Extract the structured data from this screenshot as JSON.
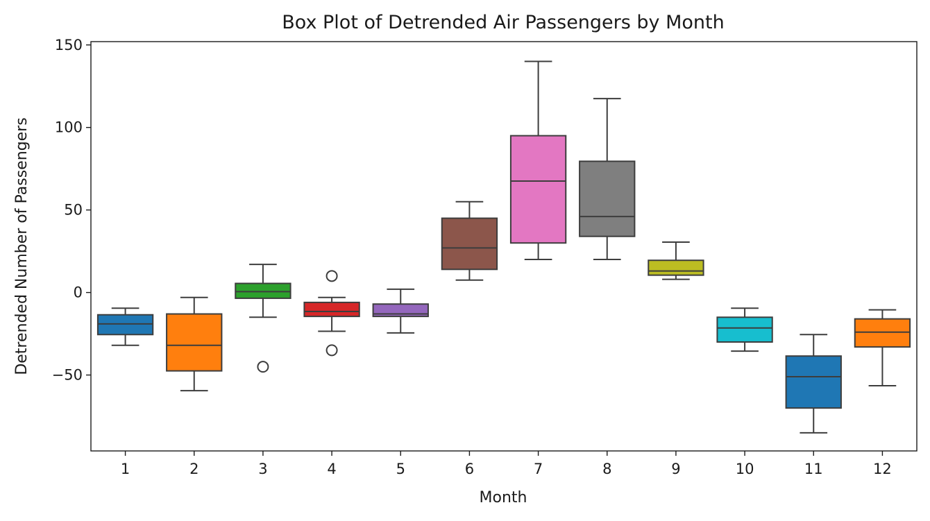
{
  "chart_data": {
    "type": "box",
    "title": "Box Plot of Detrended Air Passengers by Month",
    "xlabel": "Month",
    "ylabel": "Detrended Number of Passengers",
    "ylim": [
      -96,
      152
    ],
    "yticks": [
      -50,
      0,
      50,
      100,
      150
    ],
    "yticklabels": [
      "−50",
      "0",
      "50",
      "100",
      "150"
    ],
    "grid": false,
    "categories": [
      "1",
      "2",
      "3",
      "4",
      "5",
      "6",
      "7",
      "8",
      "9",
      "10",
      "11",
      "12"
    ],
    "colors": [
      "#1f77b4",
      "#ff7f0e",
      "#2ca02c",
      "#d62728",
      "#9467bd",
      "#8c564b",
      "#e377c2",
      "#7f7f7f",
      "#bcbd22",
      "#17becf",
      "#1f77b4",
      "#ff7f0e"
    ],
    "boxes": [
      {
        "whisker_low": -32,
        "q1": -25.5,
        "median": -19,
        "q3": -13.5,
        "whisker_high": -9.5,
        "outliers": []
      },
      {
        "whisker_low": -59.5,
        "q1": -47.5,
        "median": -32,
        "q3": -13,
        "whisker_high": -3,
        "outliers": []
      },
      {
        "whisker_low": -15,
        "q1": -3.5,
        "median": 0.5,
        "q3": 5.5,
        "whisker_high": 17,
        "outliers": [
          -45
        ]
      },
      {
        "whisker_low": -23.5,
        "q1": -14.5,
        "median": -11.5,
        "q3": -6,
        "whisker_high": -3,
        "outliers": [
          10,
          -35
        ]
      },
      {
        "whisker_low": -24.5,
        "q1": -14.5,
        "median": -13,
        "q3": -7,
        "whisker_high": 2,
        "outliers": []
      },
      {
        "whisker_low": 7.5,
        "q1": 14,
        "median": 27,
        "q3": 45,
        "whisker_high": 55,
        "outliers": []
      },
      {
        "whisker_low": 20,
        "q1": 30,
        "median": 67.5,
        "q3": 95,
        "whisker_high": 140,
        "outliers": []
      },
      {
        "whisker_low": 20,
        "q1": 34,
        "median": 46,
        "q3": 79.5,
        "whisker_high": 117.5,
        "outliers": []
      },
      {
        "whisker_low": 8,
        "q1": 10.5,
        "median": 13,
        "q3": 19.5,
        "whisker_high": 30.5,
        "outliers": []
      },
      {
        "whisker_low": -35.5,
        "q1": -30,
        "median": -21.5,
        "q3": -15,
        "whisker_high": -9.5,
        "outliers": []
      },
      {
        "whisker_low": -85,
        "q1": -70,
        "median": -51,
        "q3": -38.5,
        "whisker_high": -25.5,
        "outliers": []
      },
      {
        "whisker_low": -56.5,
        "q1": -33,
        "median": -24,
        "q3": -16,
        "whisker_high": -10.5,
        "outliers": []
      }
    ]
  }
}
